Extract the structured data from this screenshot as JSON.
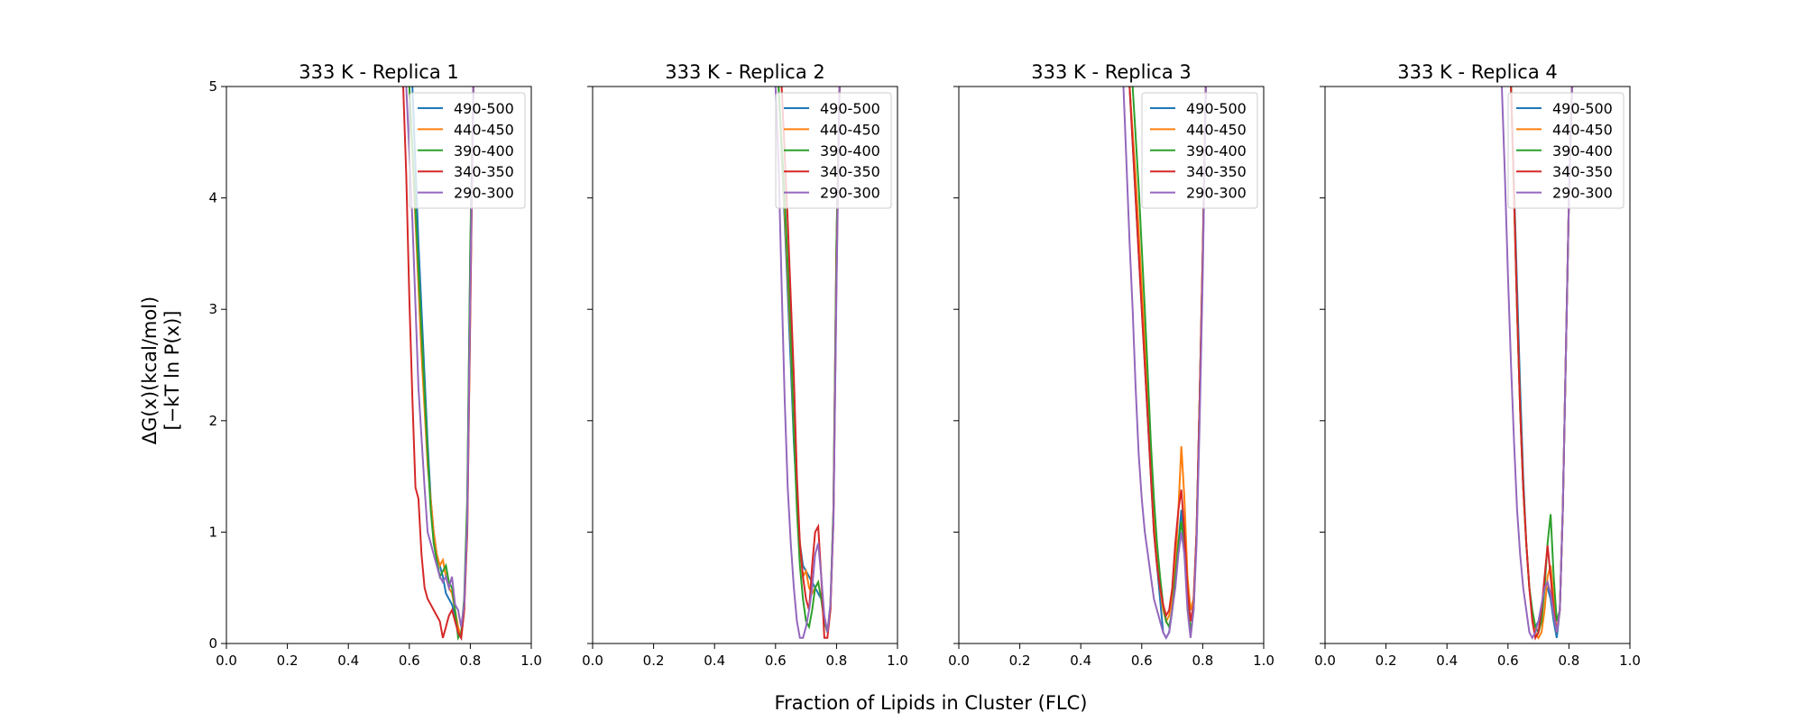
{
  "figure": {
    "ylabel_line1": "ΔG(x)(kcal/mol)",
    "ylabel_line2": "[−kT ln P(x)]",
    "xlabel": "Fraction of Lipids in Cluster (FLC)"
  },
  "colors": {
    "490-500": "#1f77b4",
    "440-450": "#ff7f0e",
    "390-400": "#2ca02c",
    "340-350": "#d62728",
    "290-300": "#9467bd"
  },
  "chart_data": [
    {
      "type": "line",
      "title": "333 K - Replica 1",
      "xlim": [
        0,
        1
      ],
      "ylim": [
        0,
        5
      ],
      "xticks": [
        "0.0",
        "0.2",
        "0.4",
        "0.6",
        "0.8",
        "1.0"
      ],
      "yticks": [
        "0",
        "1",
        "2",
        "3",
        "4",
        "5"
      ],
      "legend_position": "top-right",
      "series": [
        {
          "name": "490-500",
          "x": [
            0.61,
            0.63,
            0.65,
            0.66,
            0.67,
            0.68,
            0.69,
            0.7,
            0.71,
            0.72,
            0.73,
            0.74,
            0.75,
            0.76,
            0.77,
            0.78,
            0.79,
            0.8,
            0.81
          ],
          "y": [
            5.0,
            3.6,
            2.4,
            1.8,
            1.3,
            1.0,
            0.8,
            0.7,
            0.6,
            0.45,
            0.4,
            0.35,
            0.25,
            0.1,
            0.05,
            0.3,
            1.2,
            3.5,
            5.0
          ]
        },
        {
          "name": "440-450",
          "x": [
            0.6,
            0.62,
            0.64,
            0.66,
            0.68,
            0.69,
            0.7,
            0.71,
            0.72,
            0.73,
            0.74,
            0.75,
            0.76,
            0.77,
            0.78,
            0.79,
            0.8,
            0.81
          ],
          "y": [
            5.0,
            3.8,
            2.6,
            1.6,
            1.0,
            0.8,
            0.7,
            0.75,
            0.6,
            0.5,
            0.45,
            0.3,
            0.15,
            0.05,
            0.3,
            1.0,
            3.0,
            5.0
          ]
        },
        {
          "name": "390-400",
          "x": [
            0.6,
            0.62,
            0.64,
            0.66,
            0.67,
            0.68,
            0.69,
            0.7,
            0.71,
            0.72,
            0.73,
            0.74,
            0.75,
            0.76,
            0.77,
            0.78,
            0.79,
            0.8,
            0.81
          ],
          "y": [
            5.0,
            3.9,
            2.8,
            1.7,
            1.2,
            0.9,
            0.75,
            0.6,
            0.65,
            0.7,
            0.55,
            0.5,
            0.3,
            0.05,
            0.1,
            0.4,
            1.3,
            3.6,
            5.0
          ]
        },
        {
          "name": "340-350",
          "x": [
            0.58,
            0.59,
            0.6,
            0.61,
            0.62,
            0.63,
            0.64,
            0.65,
            0.66,
            0.67,
            0.68,
            0.69,
            0.7,
            0.71,
            0.72,
            0.73,
            0.74,
            0.75,
            0.76,
            0.77,
            0.78,
            0.79,
            0.8,
            0.81
          ],
          "y": [
            5.0,
            4.2,
            3.1,
            2.2,
            1.4,
            1.3,
            0.8,
            0.5,
            0.4,
            0.35,
            0.3,
            0.25,
            0.2,
            0.05,
            0.15,
            0.25,
            0.3,
            0.2,
            0.1,
            0.05,
            0.3,
            1.0,
            3.0,
            5.0
          ]
        },
        {
          "name": "290-300",
          "x": [
            0.59,
            0.61,
            0.63,
            0.65,
            0.66,
            0.67,
            0.68,
            0.69,
            0.7,
            0.71,
            0.72,
            0.73,
            0.74,
            0.75,
            0.76,
            0.77,
            0.78,
            0.79,
            0.8,
            0.81
          ],
          "y": [
            5.0,
            3.8,
            2.3,
            1.4,
            1.0,
            0.9,
            0.8,
            0.7,
            0.6,
            0.55,
            0.6,
            0.5,
            0.6,
            0.35,
            0.3,
            0.15,
            0.35,
            1.1,
            3.2,
            5.0
          ]
        }
      ]
    },
    {
      "type": "line",
      "title": "333 K - Replica 2",
      "xlim": [
        0,
        1
      ],
      "ylim": [
        0,
        5
      ],
      "xticks": [
        "0.0",
        "0.2",
        "0.4",
        "0.6",
        "0.8",
        "1.0"
      ],
      "yticks": [
        "0",
        "1",
        "2",
        "3",
        "4",
        "5"
      ],
      "legend_position": "top-right",
      "series": [
        {
          "name": "490-500",
          "x": [
            0.61,
            0.63,
            0.65,
            0.66,
            0.67,
            0.68,
            0.69,
            0.7,
            0.71,
            0.72,
            0.73,
            0.74,
            0.75,
            0.76,
            0.77,
            0.78,
            0.79,
            0.8,
            0.81
          ],
          "y": [
            5.0,
            3.8,
            2.5,
            1.8,
            1.3,
            0.9,
            0.7,
            0.65,
            0.6,
            0.55,
            0.5,
            0.45,
            0.4,
            0.2,
            0.1,
            0.3,
            1.2,
            3.6,
            5.0
          ]
        },
        {
          "name": "440-450",
          "x": [
            0.61,
            0.63,
            0.65,
            0.66,
            0.67,
            0.68,
            0.69,
            0.7,
            0.71,
            0.72,
            0.73,
            0.74,
            0.75,
            0.76,
            0.77,
            0.78,
            0.79,
            0.8,
            0.81
          ],
          "y": [
            5.0,
            3.9,
            2.7,
            1.9,
            1.3,
            0.9,
            0.6,
            0.65,
            0.5,
            0.45,
            0.5,
            0.55,
            0.4,
            0.2,
            0.1,
            0.3,
            1.2,
            3.6,
            5.0
          ]
        },
        {
          "name": "390-400",
          "x": [
            0.61,
            0.63,
            0.65,
            0.66,
            0.67,
            0.68,
            0.69,
            0.7,
            0.71,
            0.72,
            0.73,
            0.74,
            0.75,
            0.76,
            0.77,
            0.78,
            0.79,
            0.8,
            0.81
          ],
          "y": [
            5.0,
            4.0,
            2.8,
            1.9,
            1.2,
            0.7,
            0.4,
            0.2,
            0.15,
            0.3,
            0.5,
            0.55,
            0.4,
            0.2,
            0.1,
            0.35,
            1.2,
            3.6,
            5.0
          ]
        },
        {
          "name": "340-350",
          "x": [
            0.62,
            0.64,
            0.66,
            0.67,
            0.68,
            0.69,
            0.7,
            0.71,
            0.72,
            0.73,
            0.74,
            0.75,
            0.76,
            0.77,
            0.78,
            0.79,
            0.8,
            0.81
          ],
          "y": [
            5.0,
            3.8,
            2.4,
            1.5,
            0.9,
            0.6,
            0.4,
            0.3,
            0.7,
            1.0,
            1.05,
            0.6,
            0.05,
            0.05,
            0.3,
            1.1,
            3.3,
            5.0
          ]
        },
        {
          "name": "290-300",
          "x": [
            0.6,
            0.61,
            0.62,
            0.63,
            0.64,
            0.65,
            0.66,
            0.67,
            0.68,
            0.69,
            0.7,
            0.71,
            0.72,
            0.73,
            0.74,
            0.75,
            0.76,
            0.77,
            0.78,
            0.79,
            0.8,
            0.81
          ],
          "y": [
            5.0,
            4.3,
            3.2,
            2.2,
            1.4,
            0.9,
            0.5,
            0.2,
            0.05,
            0.05,
            0.15,
            0.3,
            0.5,
            0.8,
            0.9,
            0.6,
            0.25,
            0.1,
            0.35,
            1.1,
            3.2,
            5.0
          ]
        }
      ]
    },
    {
      "type": "line",
      "title": "333 K - Replica 3",
      "xlim": [
        0,
        1
      ],
      "ylim": [
        0,
        5
      ],
      "xticks": [
        "0.0",
        "0.2",
        "0.4",
        "0.6",
        "0.8",
        "1.0"
      ],
      "yticks": [
        "0",
        "1",
        "2",
        "3",
        "4",
        "5"
      ],
      "legend_position": "top-right",
      "series": [
        {
          "name": "490-500",
          "x": [
            0.56,
            0.58,
            0.6,
            0.62,
            0.63,
            0.64,
            0.65,
            0.66,
            0.67,
            0.68,
            0.69,
            0.7,
            0.71,
            0.72,
            0.73,
            0.74,
            0.75,
            0.76,
            0.77,
            0.78,
            0.79,
            0.8,
            0.81
          ],
          "y": [
            5.0,
            4.0,
            3.0,
            2.0,
            1.5,
            1.0,
            0.7,
            0.4,
            0.1,
            0.05,
            0.1,
            0.3,
            0.6,
            0.9,
            1.2,
            0.9,
            0.5,
            0.3,
            0.4,
            1.0,
            2.2,
            3.4,
            5.0
          ]
        },
        {
          "name": "440-450",
          "x": [
            0.56,
            0.58,
            0.6,
            0.62,
            0.63,
            0.64,
            0.65,
            0.66,
            0.67,
            0.68,
            0.69,
            0.7,
            0.71,
            0.72,
            0.73,
            0.74,
            0.75,
            0.76,
            0.77,
            0.78,
            0.79,
            0.8,
            0.81
          ],
          "y": [
            5.0,
            4.2,
            3.2,
            2.2,
            1.6,
            1.1,
            0.8,
            0.5,
            0.3,
            0.2,
            0.25,
            0.4,
            0.7,
            1.2,
            1.77,
            1.3,
            0.6,
            0.3,
            0.4,
            1.0,
            2.2,
            3.5,
            5.0
          ]
        },
        {
          "name": "390-400",
          "x": [
            0.57,
            0.59,
            0.61,
            0.62,
            0.63,
            0.64,
            0.65,
            0.66,
            0.67,
            0.68,
            0.69,
            0.7,
            0.71,
            0.72,
            0.73,
            0.74,
            0.75,
            0.76,
            0.77,
            0.78,
            0.79,
            0.8,
            0.81
          ],
          "y": [
            5.0,
            4.1,
            3.0,
            2.4,
            1.8,
            1.3,
            0.9,
            0.6,
            0.35,
            0.2,
            0.15,
            0.3,
            0.6,
            0.9,
            1.1,
            0.8,
            0.4,
            0.1,
            0.3,
            1.0,
            2.2,
            3.5,
            5.0
          ]
        },
        {
          "name": "340-350",
          "x": [
            0.56,
            0.58,
            0.6,
            0.62,
            0.63,
            0.64,
            0.65,
            0.66,
            0.67,
            0.68,
            0.69,
            0.7,
            0.71,
            0.72,
            0.73,
            0.74,
            0.75,
            0.76,
            0.77,
            0.78,
            0.79,
            0.8,
            0.81
          ],
          "y": [
            5.0,
            4.0,
            3.0,
            2.0,
            1.5,
            1.0,
            0.7,
            0.5,
            0.35,
            0.25,
            0.3,
            0.5,
            0.9,
            1.2,
            1.38,
            1.0,
            0.5,
            0.2,
            0.35,
            1.0,
            2.2,
            3.5,
            5.0
          ]
        },
        {
          "name": "290-300",
          "x": [
            0.54,
            0.55,
            0.56,
            0.57,
            0.58,
            0.59,
            0.6,
            0.61,
            0.62,
            0.63,
            0.64,
            0.65,
            0.66,
            0.67,
            0.68,
            0.69,
            0.7,
            0.71,
            0.72,
            0.73,
            0.74,
            0.75,
            0.76,
            0.77,
            0.78,
            0.79,
            0.8,
            0.81
          ],
          "y": [
            5.0,
            4.3,
            3.6,
            3.0,
            2.3,
            1.7,
            1.3,
            1.0,
            0.8,
            0.6,
            0.4,
            0.3,
            0.2,
            0.1,
            0.05,
            0.1,
            0.3,
            0.5,
            0.8,
            1.0,
            0.8,
            0.3,
            0.05,
            0.3,
            0.9,
            2.0,
            3.3,
            5.0
          ]
        }
      ]
    },
    {
      "type": "line",
      "title": "333 K - Replica 4",
      "xlim": [
        0,
        1
      ],
      "ylim": [
        0,
        5
      ],
      "xticks": [
        "0.0",
        "0.2",
        "0.4",
        "0.6",
        "0.8",
        "1.0"
      ],
      "yticks": [
        "0",
        "1",
        "2",
        "3",
        "4",
        "5"
      ],
      "legend_position": "top-right",
      "series": [
        {
          "name": "490-500",
          "x": [
            0.61,
            0.62,
            0.63,
            0.64,
            0.65,
            0.66,
            0.67,
            0.68,
            0.69,
            0.7,
            0.71,
            0.72,
            0.73,
            0.74,
            0.75,
            0.76,
            0.77,
            0.78,
            0.79,
            0.8,
            0.81
          ],
          "y": [
            5.0,
            4.1,
            3.2,
            2.3,
            1.5,
            0.9,
            0.5,
            0.25,
            0.15,
            0.2,
            0.3,
            0.5,
            0.5,
            0.4,
            0.2,
            0.05,
            0.3,
            1.2,
            2.6,
            4.0,
            5.0
          ]
        },
        {
          "name": "440-450",
          "x": [
            0.61,
            0.62,
            0.63,
            0.64,
            0.65,
            0.66,
            0.67,
            0.68,
            0.69,
            0.7,
            0.71,
            0.72,
            0.73,
            0.74,
            0.75,
            0.76,
            0.77,
            0.78,
            0.79,
            0.8,
            0.81
          ],
          "y": [
            5.0,
            4.0,
            3.0,
            2.1,
            1.4,
            0.9,
            0.5,
            0.25,
            0.1,
            0.05,
            0.1,
            0.3,
            0.6,
            0.7,
            0.4,
            0.1,
            0.3,
            1.2,
            2.6,
            4.0,
            5.0
          ]
        },
        {
          "name": "390-400",
          "x": [
            0.61,
            0.62,
            0.63,
            0.64,
            0.65,
            0.66,
            0.67,
            0.68,
            0.69,
            0.7,
            0.71,
            0.72,
            0.73,
            0.74,
            0.75,
            0.76,
            0.77,
            0.78,
            0.79,
            0.8,
            0.81
          ],
          "y": [
            5.0,
            4.0,
            3.0,
            2.1,
            1.4,
            0.9,
            0.5,
            0.3,
            0.15,
            0.1,
            0.2,
            0.5,
            0.9,
            1.16,
            0.6,
            0.2,
            0.3,
            1.2,
            2.6,
            4.0,
            5.0
          ]
        },
        {
          "name": "340-350",
          "x": [
            0.61,
            0.62,
            0.63,
            0.64,
            0.65,
            0.66,
            0.67,
            0.68,
            0.69,
            0.7,
            0.71,
            0.72,
            0.73,
            0.74,
            0.75,
            0.76,
            0.77,
            0.78,
            0.79,
            0.8,
            0.81
          ],
          "y": [
            5.0,
            4.0,
            3.0,
            2.1,
            1.4,
            0.9,
            0.5,
            0.2,
            0.05,
            0.1,
            0.3,
            0.6,
            0.88,
            0.6,
            0.3,
            0.1,
            0.3,
            1.2,
            2.6,
            4.0,
            5.0
          ]
        },
        {
          "name": "290-300",
          "x": [
            0.58,
            0.59,
            0.6,
            0.61,
            0.62,
            0.63,
            0.64,
            0.65,
            0.66,
            0.67,
            0.68,
            0.69,
            0.7,
            0.71,
            0.72,
            0.73,
            0.74,
            0.75,
            0.76,
            0.77,
            0.78,
            0.79,
            0.8,
            0.81
          ],
          "y": [
            5.0,
            4.2,
            3.3,
            2.5,
            1.8,
            1.2,
            0.8,
            0.5,
            0.3,
            0.1,
            0.05,
            0.1,
            0.2,
            0.35,
            0.5,
            0.55,
            0.45,
            0.25,
            0.1,
            0.3,
            1.2,
            2.6,
            4.0,
            5.0
          ]
        }
      ]
    }
  ]
}
